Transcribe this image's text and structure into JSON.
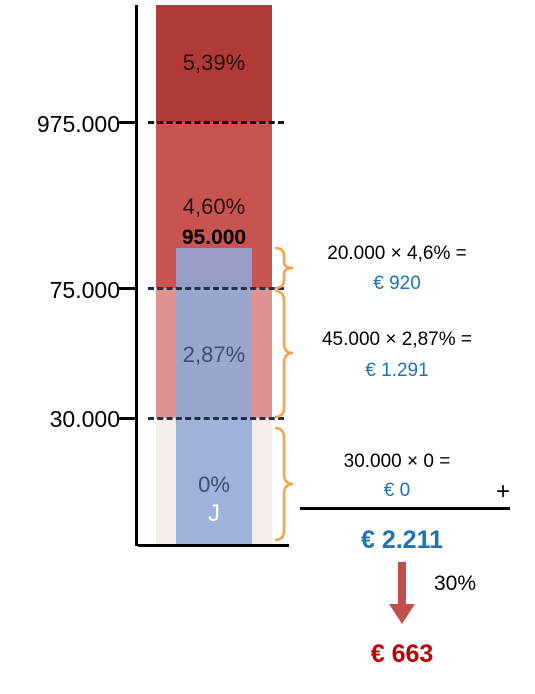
{
  "colors": {
    "band_top": "#b03a37",
    "band_4_60": "#c75451",
    "band_2_87": "#de9391",
    "band_0": "#f8ecea",
    "income_bar": "#8ea9d8",
    "bracket": "#f5a14c",
    "calc_blue": "#1f73b7",
    "result_red": "#c00000",
    "arrow": "#c0504d"
  },
  "axis": {
    "ticks": [
      "975.000",
      "75.000",
      "30.000"
    ]
  },
  "bands": {
    "top": {
      "rate": "5,39%"
    },
    "b460": {
      "rate": "4,60%"
    },
    "b287": {
      "rate": "2,87%"
    },
    "b0": {
      "rate": "0%"
    }
  },
  "income": {
    "amount": "95.000",
    "letter": "J"
  },
  "calculations": [
    {
      "formula": "20.000 × 4,6% =",
      "result": "€ 920"
    },
    {
      "formula": "45.000 × 2,87% =",
      "result": "€ 1.291"
    },
    {
      "formula": "30.000 × 0 =",
      "result": "€ 0"
    }
  ],
  "sum": {
    "operator": "+",
    "total": "€ 2.211"
  },
  "final": {
    "percentage": "30%",
    "amount": "€ 663"
  }
}
